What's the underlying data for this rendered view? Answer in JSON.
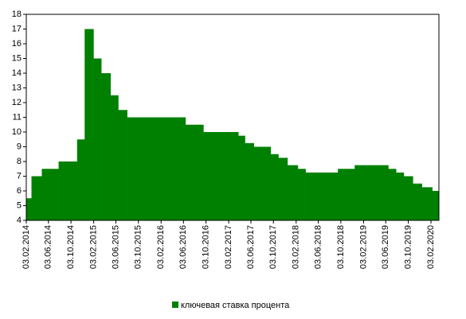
{
  "chart_data": {
    "type": "step-area",
    "series": [
      {
        "name": "ключевая ставка процента",
        "color": "#008000",
        "x": [
          "03.02.2014",
          "03.03.2014",
          "28.04.2014",
          "28.07.2014",
          "05.11.2014",
          "16.12.2014",
          "02.02.2015",
          "16.03.2015",
          "05.05.2015",
          "16.06.2015",
          "03.08.2015",
          "14.06.2016",
          "19.09.2016",
          "27.03.2017",
          "02.05.2017",
          "19.06.2017",
          "18.09.2017",
          "30.10.2017",
          "18.12.2017",
          "12.02.2018",
          "26.03.2018",
          "17.09.2018",
          "17.12.2018",
          "17.06.2019",
          "29.07.2019",
          "09.09.2019",
          "28.10.2019",
          "16.12.2019",
          "10.02.2020"
        ],
        "values": [
          5.5,
          7,
          7.5,
          8,
          9.5,
          17,
          15,
          14,
          12.5,
          11.5,
          11,
          10.5,
          10,
          9.75,
          9.25,
          9,
          8.5,
          8.25,
          7.75,
          7.5,
          7.25,
          7.5,
          7.75,
          7.5,
          7.25,
          7,
          6.5,
          6.25,
          6
        ]
      }
    ],
    "xlim": [
      "03.02.2014",
      "17.03.2020"
    ],
    "xticks": [
      "03.02.2014",
      "03.06.2014",
      "03.10.2014",
      "03.02.2015",
      "03.06.2015",
      "03.10.2015",
      "03.02.2016",
      "03.06.2016",
      "03.10.2016",
      "03.02.2017",
      "03.06.2017",
      "03.10.2017",
      "03.02.2018",
      "03.06.2018",
      "03.10.2018",
      "03.02.2019",
      "03.06.2019",
      "03.10.2019",
      "03.02.2020"
    ],
    "ylim": [
      4,
      18
    ],
    "yticks": [
      4,
      5,
      6,
      7,
      8,
      9,
      10,
      11,
      12,
      13,
      14,
      15,
      16,
      17,
      18
    ],
    "legend": "bottom"
  }
}
